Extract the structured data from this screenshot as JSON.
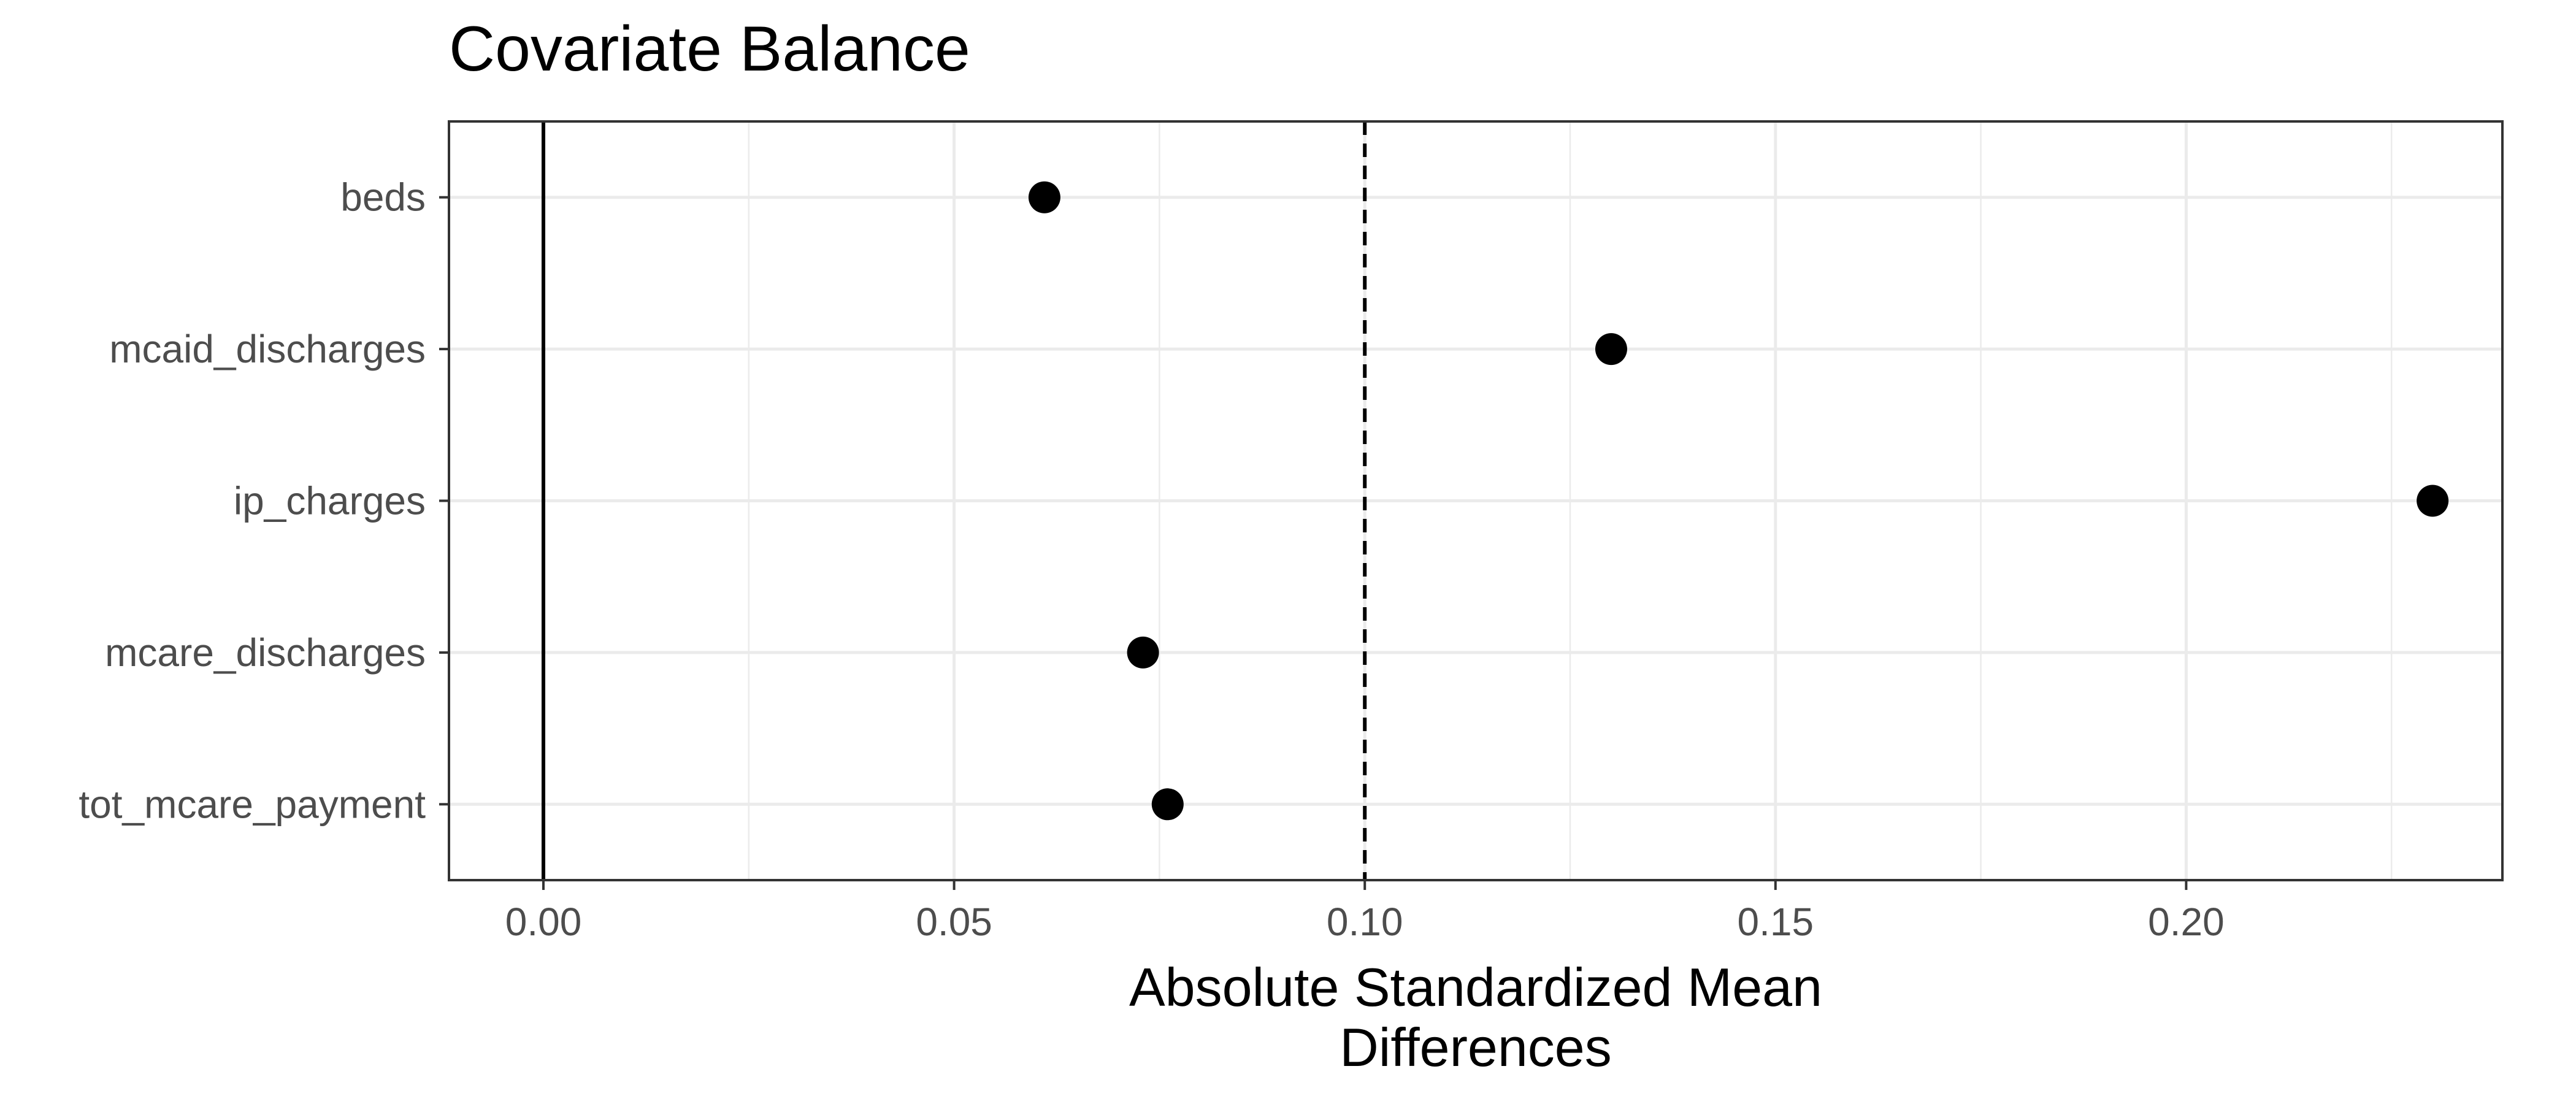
{
  "chart_data": {
    "type": "scatter",
    "title": "Covariate Balance",
    "xlabel": "Absolute Standardized Mean\nDifferences",
    "ylabel": "",
    "categories": [
      "beds",
      "mcaid_discharges",
      "ip_charges",
      "mcare_discharges",
      "tot_mcare_payment"
    ],
    "values": [
      0.061,
      0.13,
      0.23,
      0.073,
      0.076
    ],
    "xlim": [
      -0.0115,
      0.2385
    ],
    "xticks": [
      "0.00",
      "0.05",
      "0.10",
      "0.15",
      "0.20"
    ],
    "xtick_values": [
      0.0,
      0.05,
      0.1,
      0.15,
      0.2
    ],
    "reference_lines": [
      {
        "x": 0.0,
        "style": "solid"
      },
      {
        "x": 0.1,
        "style": "dashed"
      }
    ],
    "grid": true,
    "legend": "none",
    "colors": {
      "point": "#000000",
      "grid": "#ebebeb",
      "panel_border": "#333333",
      "tick_label": "#4d4d4d"
    }
  }
}
